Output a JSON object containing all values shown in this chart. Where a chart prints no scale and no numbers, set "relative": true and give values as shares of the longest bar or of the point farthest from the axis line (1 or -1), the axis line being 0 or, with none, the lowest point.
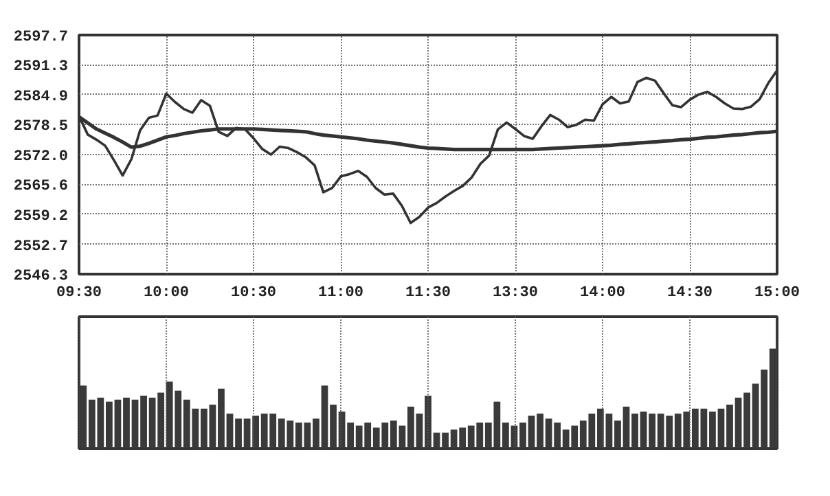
{
  "chart_data": [
    {
      "type": "line",
      "categories": [
        "09:30",
        null,
        null,
        null,
        null,
        null,
        null,
        null,
        null,
        null,
        "10:00",
        null,
        null,
        null,
        null,
        null,
        null,
        null,
        null,
        null,
        "10:30",
        null,
        null,
        null,
        null,
        null,
        null,
        null,
        null,
        null,
        "11:00",
        null,
        null,
        null,
        null,
        null,
        null,
        null,
        null,
        null,
        "11:30",
        null,
        null,
        null,
        null,
        null,
        null,
        null,
        null,
        null,
        "13:30",
        null,
        null,
        null,
        null,
        null,
        null,
        null,
        null,
        null,
        "14:00",
        null,
        null,
        null,
        null,
        null,
        null,
        null,
        null,
        null,
        "14:30",
        null,
        null,
        null,
        null,
        null,
        null,
        null,
        null,
        null,
        "15:00"
      ],
      "series": [
        {
          "color": "#333333",
          "values": [
            2580.3,
            2576.3,
            2575.2,
            2573.9,
            2570.8,
            2567.5,
            2571.0,
            2577.2,
            2579.9,
            2580.4,
            2585.1,
            2583.3,
            2581.8,
            2581.0,
            2583.7,
            2582.5,
            2576.9,
            2576.0,
            2577.7,
            2577.5,
            2575.5,
            2573.2,
            2572.0,
            2573.7,
            2573.4,
            2572.5,
            2571.4,
            2569.7,
            2563.9,
            2564.8,
            2567.3,
            2567.8,
            2568.5,
            2567.2,
            2564.8,
            2563.4,
            2563.6,
            2561.0,
            2557.3,
            2558.6,
            2560.6,
            2561.6,
            2563.0,
            2564.2,
            2565.3,
            2567.1,
            2570.0,
            2571.8,
            2577.4,
            2578.9,
            2577.5,
            2576.0,
            2575.4,
            2578.1,
            2580.5,
            2579.5,
            2577.9,
            2578.4,
            2579.5,
            2579.3,
            2582.8,
            2584.4,
            2583.0,
            2583.4,
            2587.6,
            2588.5,
            2587.9,
            2585.2,
            2582.6,
            2582.2,
            2583.8,
            2584.9,
            2585.5,
            2584.4,
            2583.0,
            2581.9,
            2581.8,
            2582.3,
            2583.9,
            2587.4,
            2590.1
          ]
        },
        {
          "color": "#333333",
          "values": [
            2580.1,
            2578.8,
            2577.5,
            2576.6,
            2575.7,
            2574.7,
            2573.6,
            2573.8,
            2574.4,
            2575.1,
            2575.8,
            2576.1,
            2576.5,
            2576.8,
            2577.1,
            2577.3,
            2577.5,
            2577.5,
            2577.5,
            2577.5,
            2577.5,
            2577.4,
            2577.3,
            2577.2,
            2577.1,
            2577.0,
            2576.9,
            2576.5,
            2576.2,
            2576.0,
            2575.8,
            2575.6,
            2575.4,
            2575.1,
            2574.9,
            2574.7,
            2574.5,
            2574.2,
            2573.9,
            2573.6,
            2573.4,
            2573.3,
            2573.2,
            2573.1,
            2573.1,
            2573.1,
            2573.1,
            2573.1,
            2573.1,
            2573.1,
            2573.1,
            2573.1,
            2573.1,
            2573.2,
            2573.3,
            2573.4,
            2573.5,
            2573.6,
            2573.7,
            2573.8,
            2573.9,
            2574.0,
            2574.2,
            2574.3,
            2574.5,
            2574.6,
            2574.7,
            2574.9,
            2575.0,
            2575.2,
            2575.3,
            2575.5,
            2575.7,
            2575.8,
            2576.0,
            2576.2,
            2576.3,
            2576.5,
            2576.7,
            2576.8,
            2577.0
          ]
        }
      ],
      "ylim": [
        2546.3,
        2597.7
      ],
      "yticks": [
        2546.3,
        2552.7,
        2559.2,
        2565.6,
        {
          "value": 2572.0,
          "label": "2572.0"
        },
        2578.5,
        2584.9,
        2591.3,
        2597.7
      ],
      "grid": true,
      "marker": "none",
      "line_style": "solid"
    },
    {
      "type": "bar",
      "relative": true,
      "color": "#3a3a3a",
      "categories": [
        null,
        null,
        null,
        null,
        null,
        null,
        null,
        null,
        null,
        null,
        null,
        null,
        null,
        null,
        null,
        null,
        null,
        null,
        null,
        null,
        null,
        null,
        null,
        null,
        null,
        null,
        null,
        null,
        null,
        null,
        null,
        null,
        null,
        null,
        null,
        null,
        null,
        null,
        null,
        null,
        null,
        null,
        null,
        null,
        null,
        null,
        null,
        null,
        null,
        null,
        null,
        null,
        null,
        null,
        null,
        null,
        null,
        null,
        null,
        null,
        null,
        null,
        null,
        null,
        null,
        null,
        null,
        null,
        null,
        null,
        null,
        null,
        null,
        null,
        null,
        null,
        null,
        null,
        null,
        null,
        null
      ],
      "values": [
        0.63,
        0.49,
        0.51,
        0.47,
        0.49,
        0.51,
        0.49,
        0.53,
        0.51,
        0.56,
        0.67,
        0.58,
        0.49,
        0.4,
        0.4,
        0.44,
        0.6,
        0.35,
        0.3,
        0.3,
        0.33,
        0.35,
        0.35,
        0.3,
        0.28,
        0.26,
        0.26,
        0.3,
        0.63,
        0.44,
        0.37,
        0.26,
        0.23,
        0.26,
        0.21,
        0.26,
        0.28,
        0.23,
        0.42,
        0.35,
        0.53,
        0.16,
        0.16,
        0.19,
        0.21,
        0.23,
        0.26,
        0.26,
        0.47,
        0.26,
        0.23,
        0.26,
        0.33,
        0.35,
        0.3,
        0.26,
        0.19,
        0.23,
        0.28,
        0.35,
        0.4,
        0.35,
        0.28,
        0.42,
        0.35,
        0.37,
        0.35,
        0.35,
        0.33,
        0.35,
        0.37,
        0.4,
        0.4,
        0.37,
        0.4,
        0.44,
        0.51,
        0.56,
        0.65,
        0.79,
        1.0
      ],
      "grid": "x"
    }
  ]
}
